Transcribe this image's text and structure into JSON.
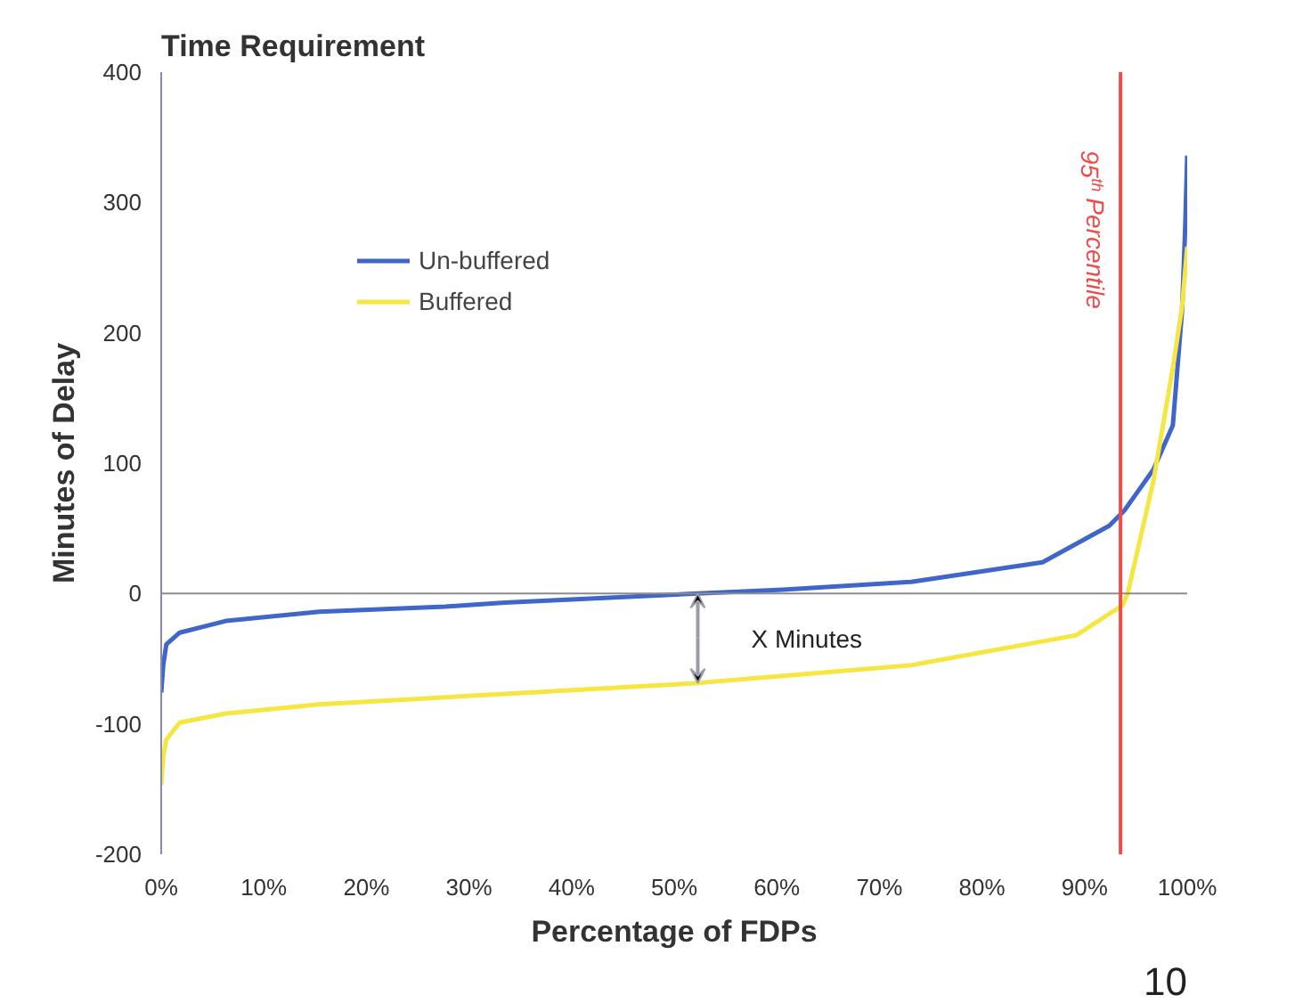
{
  "chart_data": {
    "type": "line",
    "title": "Time Requirement",
    "xlabel": "Percentage of FDPs",
    "ylabel": "Minutes of Delay",
    "xlim": [
      0,
      100
    ],
    "ylim": [
      -200,
      400
    ],
    "xticks": [
      {
        "value": 0,
        "label": "0%"
      },
      {
        "value": 10,
        "label": "10%"
      },
      {
        "value": 20,
        "label": "20%"
      },
      {
        "value": 30,
        "label": "30%"
      },
      {
        "value": 40,
        "label": "40%"
      },
      {
        "value": 50,
        "label": "50%"
      },
      {
        "value": 60,
        "label": "60%"
      },
      {
        "value": 70,
        "label": "70%"
      },
      {
        "value": 80,
        "label": "80%"
      },
      {
        "value": 90,
        "label": "90%"
      },
      {
        "value": 100,
        "label": "100%"
      }
    ],
    "yticks": [
      -200,
      -100,
      0,
      100,
      200,
      300,
      400
    ],
    "grid": false,
    "legend": "top left",
    "marker": "none",
    "line_style": "solid",
    "series": [
      {
        "name": "Un-buffered",
        "color": "#3f66c8",
        "x": [
          0,
          0.2,
          0.5,
          1.8,
          6.3,
          15.4,
          27.7,
          33.5,
          52.3,
          60.6,
          73.1,
          85.9,
          92.4,
          93.9,
          96.7,
          98.6,
          99.5,
          99.8,
          100
        ],
        "values": [
          -76,
          -55,
          -39,
          -30,
          -21,
          -14,
          -10,
          -7,
          0,
          3,
          9,
          24,
          52,
          64,
          95,
          129,
          217,
          280,
          336
        ]
      },
      {
        "name": "Buffered",
        "color": "#f5e642",
        "x": [
          0,
          0.2,
          0.5,
          1.8,
          6.3,
          15.4,
          33.5,
          51.7,
          73.1,
          89.2,
          93.7,
          94.2,
          96.7,
          98.6,
          99.5,
          100
        ],
        "values": [
          -147,
          -125,
          -112,
          -99,
          -92,
          -85,
          -77,
          -69,
          -55,
          -32,
          -9,
          0,
          86,
          173,
          220,
          266
        ]
      }
    ],
    "ref_lines": [
      {
        "axis": "y",
        "value": 0,
        "color": "#8c8c8c"
      },
      {
        "axis": "x",
        "value": 93.5,
        "label": "95$^{th}$ Percentile",
        "color": "#f04a4a"
      }
    ],
    "annotations": [
      "X Minutes",
      "10"
    ]
  }
}
